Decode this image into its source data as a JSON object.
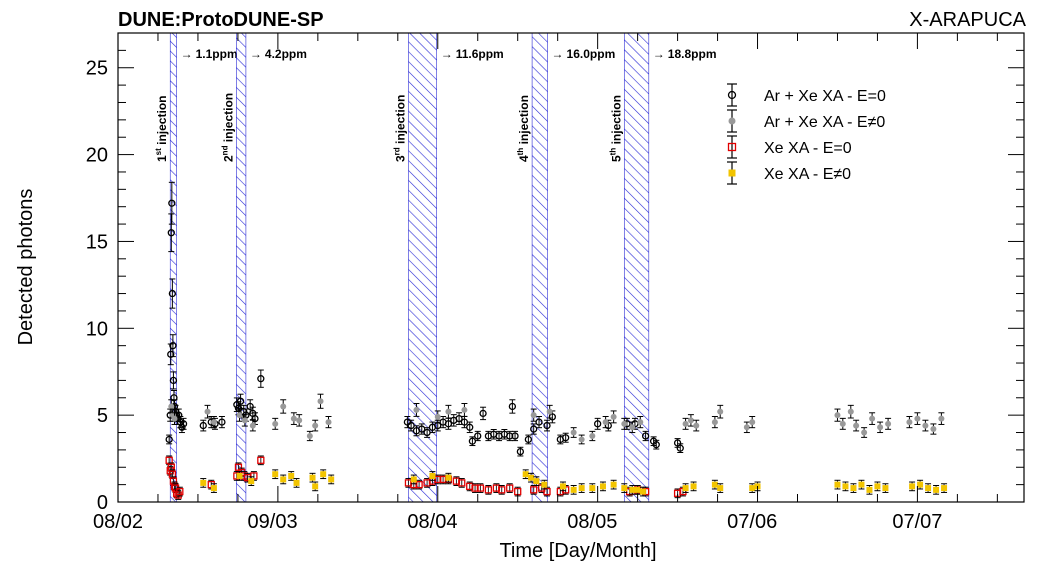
{
  "chart_data": {
    "type": "scatter",
    "title_left": "DUNE:ProtoDUNE-SP",
    "title_right": "X-ARAPUCA",
    "xlabel": "Time [Day/Month]",
    "ylabel": "Detected photons",
    "xlim": [
      0,
      170
    ],
    "ylim": [
      0,
      27
    ],
    "yticks": [
      0,
      5,
      10,
      15,
      20,
      25
    ],
    "xticks": [
      {
        "day": 0,
        "label": "08/02"
      },
      {
        "day": 29,
        "label": "09/03"
      },
      {
        "day": 59,
        "label": "08/04"
      },
      {
        "day": 89,
        "label": "08/05"
      },
      {
        "day": 119,
        "label": "07/06"
      },
      {
        "day": 150,
        "label": "07/07"
      }
    ],
    "injections": [
      {
        "start": 9.8,
        "end": 11.0,
        "ord": "1",
        "suf": "st",
        "text": "injection",
        "conc": "1.1ppm"
      },
      {
        "start": 22.2,
        "end": 24.0,
        "ord": "2",
        "suf": "nd",
        "text": "injection",
        "conc": "4.2ppm"
      },
      {
        "start": 54.5,
        "end": 59.8,
        "ord": "3",
        "suf": "rd",
        "text": "injection",
        "conc": "11.6ppm"
      },
      {
        "start": 77.7,
        "end": 80.6,
        "ord": "4",
        "suf": "th",
        "text": "injection",
        "conc": "16.0ppm"
      },
      {
        "start": 95.0,
        "end": 99.6,
        "ord": "5",
        "suf": "th",
        "text": "injection",
        "conc": "18.8ppm"
      }
    ],
    "series": [
      {
        "name": "Ar + Xe XA - E=0",
        "marker": "open-circle",
        "color": "#000000",
        "points": [
          [
            9.6,
            3.6
          ],
          [
            9.8,
            5.0
          ],
          [
            9.9,
            8.5
          ],
          [
            10.0,
            15.5
          ],
          [
            10.1,
            17.2
          ],
          [
            10.2,
            12.0
          ],
          [
            10.3,
            9.0
          ],
          [
            10.4,
            7.0
          ],
          [
            10.5,
            6.0
          ],
          [
            10.6,
            5.5
          ],
          [
            10.8,
            5.2
          ],
          [
            11.0,
            5.0
          ],
          [
            11.2,
            4.8
          ],
          [
            11.4,
            5.0
          ],
          [
            11.7,
            4.6
          ],
          [
            12.0,
            4.3
          ],
          [
            12.3,
            4.5
          ],
          [
            16.0,
            4.4
          ],
          [
            17.5,
            4.6
          ],
          [
            18.2,
            4.5
          ],
          [
            19.5,
            4.6
          ],
          [
            22.3,
            5.6
          ],
          [
            22.6,
            5.4
          ],
          [
            23.0,
            5.8
          ],
          [
            23.6,
            5.2
          ],
          [
            24.0,
            5.0
          ],
          [
            24.8,
            5.5
          ],
          [
            25.3,
            5.1
          ],
          [
            25.7,
            4.8
          ],
          [
            26.8,
            7.1
          ],
          [
            54.3,
            4.6
          ],
          [
            55.0,
            4.4
          ],
          [
            56.0,
            4.1
          ],
          [
            57.0,
            4.2
          ],
          [
            58.0,
            4.0
          ],
          [
            59.0,
            4.3
          ],
          [
            60.0,
            4.4
          ],
          [
            61.0,
            4.6
          ],
          [
            62.0,
            4.5
          ],
          [
            63.0,
            4.7
          ],
          [
            64.0,
            4.8
          ],
          [
            65.0,
            4.6
          ],
          [
            66.0,
            4.3
          ],
          [
            66.5,
            3.5
          ],
          [
            67.5,
            3.8
          ],
          [
            68.5,
            5.1
          ],
          [
            69.5,
            3.8
          ],
          [
            70.5,
            3.9
          ],
          [
            71.5,
            3.8
          ],
          [
            72.5,
            3.9
          ],
          [
            73.5,
            3.8
          ],
          [
            74.0,
            5.5
          ],
          [
            74.5,
            3.8
          ],
          [
            75.5,
            2.9
          ],
          [
            77.0,
            3.6
          ],
          [
            78.0,
            4.2
          ],
          [
            79.0,
            4.6
          ],
          [
            80.5,
            4.4
          ],
          [
            81.5,
            4.9
          ],
          [
            83.0,
            3.6
          ],
          [
            84.0,
            3.7
          ],
          [
            90.0,
            4.5
          ],
          [
            92.0,
            4.4
          ],
          [
            95.5,
            4.5
          ],
          [
            97.0,
            4.5
          ],
          [
            99.0,
            3.8
          ],
          [
            100.5,
            3.5
          ],
          [
            101.0,
            3.3
          ],
          [
            105.0,
            3.4
          ],
          [
            105.5,
            3.1
          ]
        ]
      },
      {
        "name": "Ar + Xe XA - E≠0",
        "marker": "filled-circle",
        "color": "#999999",
        "points": [
          [
            10.0,
            5.5
          ],
          [
            10.3,
            5.0
          ],
          [
            10.6,
            4.8
          ],
          [
            16.8,
            5.2
          ],
          [
            18.0,
            4.6
          ],
          [
            22.8,
            5.0
          ],
          [
            23.8,
            4.7
          ],
          [
            25.3,
            4.4
          ],
          [
            29.5,
            4.5
          ],
          [
            31.0,
            5.5
          ],
          [
            33.0,
            4.8
          ],
          [
            34.0,
            4.7
          ],
          [
            36.0,
            3.8
          ],
          [
            37.0,
            4.4
          ],
          [
            38.0,
            5.8
          ],
          [
            39.5,
            4.6
          ],
          [
            56.0,
            5.3
          ],
          [
            60.0,
            4.9
          ],
          [
            62.0,
            5.2
          ],
          [
            65.0,
            5.3
          ],
          [
            78.0,
            5.0
          ],
          [
            81.0,
            5.2
          ],
          [
            85.5,
            4.0
          ],
          [
            87.0,
            3.6
          ],
          [
            89.0,
            3.8
          ],
          [
            91.5,
            4.6
          ],
          [
            93.0,
            4.9
          ],
          [
            95.0,
            4.5
          ],
          [
            96.5,
            4.3
          ],
          [
            98.0,
            4.6
          ],
          [
            106.5,
            4.5
          ],
          [
            107.5,
            4.7
          ],
          [
            108.5,
            4.4
          ],
          [
            112.0,
            4.6
          ],
          [
            113.0,
            5.2
          ],
          [
            118.0,
            4.3
          ],
          [
            119.0,
            4.6
          ],
          [
            135.0,
            5.0
          ],
          [
            136.0,
            4.5
          ],
          [
            137.5,
            5.2
          ],
          [
            138.5,
            4.4
          ],
          [
            140.0,
            4.0
          ],
          [
            141.5,
            4.8
          ],
          [
            143.0,
            4.3
          ],
          [
            144.5,
            4.5
          ],
          [
            148.5,
            4.6
          ],
          [
            150.0,
            4.8
          ],
          [
            151.5,
            4.4
          ],
          [
            153.0,
            4.2
          ],
          [
            154.5,
            4.8
          ]
        ]
      },
      {
        "name": "Xe XA - E=0",
        "marker": "open-square",
        "color": "#e00000",
        "points": [
          [
            9.6,
            2.4
          ],
          [
            9.8,
            1.8
          ],
          [
            10.0,
            2.0
          ],
          [
            10.2,
            1.6
          ],
          [
            10.4,
            1.2
          ],
          [
            10.6,
            0.9
          ],
          [
            10.8,
            0.8
          ],
          [
            11.0,
            0.5
          ],
          [
            11.3,
            0.4
          ],
          [
            11.6,
            0.6
          ],
          [
            17.5,
            1.0
          ],
          [
            22.3,
            1.5
          ],
          [
            22.6,
            2.0
          ],
          [
            23.2,
            1.7
          ],
          [
            23.7,
            1.5
          ],
          [
            24.3,
            1.4
          ],
          [
            25.5,
            1.5
          ],
          [
            26.8,
            2.4
          ],
          [
            54.5,
            1.1
          ],
          [
            55.5,
            1.0
          ],
          [
            56.5,
            1.0
          ],
          [
            58.0,
            1.1
          ],
          [
            59.0,
            1.2
          ],
          [
            60.0,
            1.3
          ],
          [
            61.0,
            1.3
          ],
          [
            62.0,
            1.3
          ],
          [
            63.5,
            1.2
          ],
          [
            64.5,
            1.1
          ],
          [
            66.0,
            0.9
          ],
          [
            67.0,
            0.8
          ],
          [
            68.0,
            0.8
          ],
          [
            69.5,
            0.7
          ],
          [
            71.0,
            0.8
          ],
          [
            72.0,
            0.7
          ],
          [
            73.5,
            0.8
          ],
          [
            75.0,
            0.6
          ],
          [
            78.0,
            0.7
          ],
          [
            79.5,
            0.8
          ],
          [
            80.5,
            0.6
          ],
          [
            83.0,
            0.6
          ],
          [
            84.0,
            0.7
          ],
          [
            96.0,
            0.6
          ],
          [
            97.5,
            0.7
          ],
          [
            99.0,
            0.6
          ],
          [
            105.0,
            0.5
          ],
          [
            106.0,
            0.6
          ]
        ]
      },
      {
        "name": "Xe XA - E≠0",
        "marker": "filled-square",
        "color": "#f2c400",
        "points": [
          [
            16.0,
            1.1
          ],
          [
            18.0,
            0.8
          ],
          [
            22.8,
            1.5
          ],
          [
            25.0,
            1.2
          ],
          [
            29.5,
            1.6
          ],
          [
            31.0,
            1.3
          ],
          [
            32.5,
            1.5
          ],
          [
            33.5,
            1.1
          ],
          [
            36.5,
            1.4
          ],
          [
            37.0,
            0.9
          ],
          [
            38.5,
            1.6
          ],
          [
            40.0,
            1.3
          ],
          [
            55.5,
            1.3
          ],
          [
            59.0,
            1.5
          ],
          [
            62.0,
            1.4
          ],
          [
            76.5,
            1.6
          ],
          [
            77.5,
            1.4
          ],
          [
            78.5,
            1.2
          ],
          [
            80.0,
            1.0
          ],
          [
            83.5,
            0.9
          ],
          [
            85.5,
            0.7
          ],
          [
            87.0,
            0.8
          ],
          [
            89.0,
            0.8
          ],
          [
            91.0,
            0.9
          ],
          [
            93.0,
            1.0
          ],
          [
            95.0,
            0.8
          ],
          [
            96.5,
            0.7
          ],
          [
            97.5,
            0.7
          ],
          [
            98.5,
            0.6
          ],
          [
            106.5,
            0.8
          ],
          [
            108.0,
            0.9
          ],
          [
            112.0,
            1.0
          ],
          [
            113.0,
            0.8
          ],
          [
            119.0,
            0.8
          ],
          [
            120.0,
            0.9
          ],
          [
            135.0,
            1.0
          ],
          [
            136.5,
            0.9
          ],
          [
            138.0,
            0.8
          ],
          [
            139.5,
            1.0
          ],
          [
            141.0,
            0.7
          ],
          [
            142.5,
            0.9
          ],
          [
            144.0,
            0.8
          ],
          [
            149.0,
            0.9
          ],
          [
            150.5,
            1.0
          ],
          [
            152.0,
            0.8
          ],
          [
            153.5,
            0.7
          ],
          [
            155.0,
            0.8
          ]
        ]
      }
    ],
    "legend": "top-right"
  }
}
